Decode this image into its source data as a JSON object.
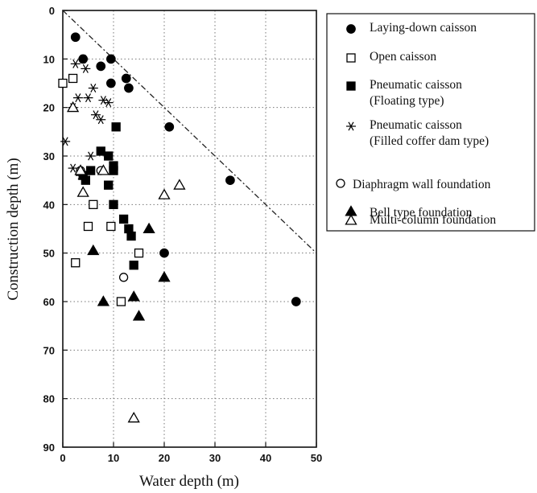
{
  "chart_data": {
    "type": "scatter",
    "title": "",
    "xlabel": "Water depth (m)",
    "ylabel": "Construction depth (m)",
    "xlim": [
      0,
      50
    ],
    "ylim": [
      0,
      90
    ],
    "y_inverted": true,
    "x_ticks": [
      "0",
      "10",
      "20",
      "30",
      "40",
      "50"
    ],
    "y_ticks": [
      "0",
      "10",
      "20",
      "30",
      "40",
      "50",
      "60",
      "70",
      "80",
      "90"
    ],
    "grid": "dotted",
    "legend_position": "outside-right",
    "reference_line": {
      "style": "dash-dot",
      "points": [
        [
          0,
          0
        ],
        [
          50,
          50
        ]
      ]
    },
    "series": [
      {
        "name": "Laying-down caisson",
        "marker": "filled-circle",
        "points": [
          [
            2.5,
            5.5
          ],
          [
            4,
            10
          ],
          [
            7.5,
            11.5
          ],
          [
            9.5,
            10
          ],
          [
            9.5,
            15
          ],
          [
            12.5,
            14
          ],
          [
            13,
            16
          ],
          [
            21,
            24
          ],
          [
            33,
            35
          ],
          [
            20,
            50
          ],
          [
            46,
            60
          ]
        ]
      },
      {
        "name": "Open caisson",
        "marker": "open-square",
        "points": [
          [
            0,
            15
          ],
          [
            2,
            14
          ],
          [
            6,
            40
          ],
          [
            5,
            44.5
          ],
          [
            9.5,
            44.5
          ],
          [
            15,
            50
          ],
          [
            2.5,
            52
          ],
          [
            11.5,
            60
          ]
        ]
      },
      {
        "name": "Pneumatic caisson (Floating type)",
        "marker": "filled-square",
        "points": [
          [
            10.5,
            24
          ],
          [
            7.5,
            29
          ],
          [
            9,
            30
          ],
          [
            10,
            32
          ],
          [
            10,
            33
          ],
          [
            5.5,
            33
          ],
          [
            4,
            34
          ],
          [
            4.5,
            35
          ],
          [
            9,
            36
          ],
          [
            10,
            40
          ],
          [
            12,
            43
          ],
          [
            13,
            45
          ],
          [
            13.5,
            46.5
          ],
          [
            14,
            52.5
          ]
        ]
      },
      {
        "name": "Pneumatic caisson (Filled coffer dam type)",
        "marker": "asterisk",
        "points": [
          [
            4,
            10
          ],
          [
            2.5,
            11
          ],
          [
            4.5,
            12
          ],
          [
            6,
            16
          ],
          [
            5,
            18
          ],
          [
            3,
            18
          ],
          [
            8,
            18.5
          ],
          [
            9,
            19
          ],
          [
            2,
            20
          ],
          [
            6.5,
            21.5
          ],
          [
            7.5,
            22.5
          ],
          [
            0.5,
            27
          ],
          [
            5.5,
            30
          ],
          [
            2,
            32.5
          ],
          [
            3.5,
            34
          ]
        ]
      },
      {
        "name": "Diaphragm wall foundation",
        "marker": "open-circle",
        "points": [
          [
            3.5,
            33
          ],
          [
            7.5,
            33
          ],
          [
            12,
            55
          ]
        ]
      },
      {
        "name": "Bell type foundation",
        "marker": "filled-triangle",
        "points": [
          [
            6,
            49.5
          ],
          [
            17,
            45
          ],
          [
            20,
            55
          ],
          [
            8,
            60
          ],
          [
            14,
            59
          ],
          [
            15,
            63
          ]
        ]
      },
      {
        "name": "Multi-column foundation",
        "marker": "open-triangle",
        "points": [
          [
            2,
            20
          ],
          [
            3.5,
            33
          ],
          [
            4,
            37.5
          ],
          [
            8,
            33
          ],
          [
            20,
            38
          ],
          [
            23,
            36
          ],
          [
            14,
            84
          ]
        ]
      }
    ]
  }
}
